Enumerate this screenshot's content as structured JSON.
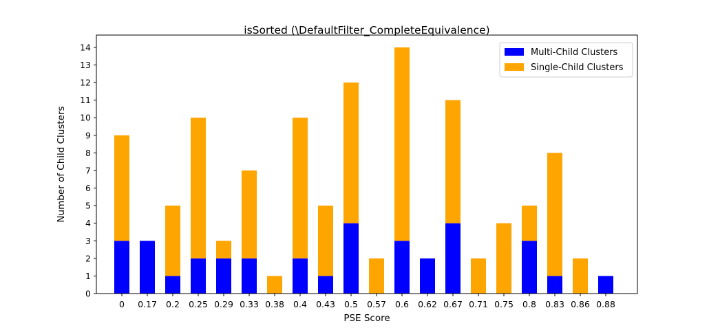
{
  "chart_data": {
    "type": "bar",
    "stacked": true,
    "title": "isSorted (\\DefaultFilter_CompleteEquivalence)",
    "xlabel": "PSE Score",
    "ylabel": "Number of Child Clusters",
    "ylim": [
      0,
      14.7
    ],
    "yticks": [
      "0",
      "1",
      "2",
      "3",
      "4",
      "5",
      "6",
      "7",
      "8",
      "9",
      "10",
      "11",
      "12",
      "13",
      "14"
    ],
    "categories": [
      "0",
      "0.17",
      "0.2",
      "0.25",
      "0.29",
      "0.33",
      "0.38",
      "0.4",
      "0.43",
      "0.5",
      "0.57",
      "0.6",
      "0.62",
      "0.67",
      "0.71",
      "0.75",
      "0.8",
      "0.83",
      "0.86",
      "0.88"
    ],
    "series": [
      {
        "name": "Multi-Child Clusters",
        "color": "#0000ff",
        "values": [
          3,
          3,
          1,
          2,
          2,
          2,
          0,
          2,
          1,
          4,
          0,
          3,
          2,
          4,
          0,
          0,
          3,
          1,
          0,
          1
        ]
      },
      {
        "name": "Single-Child Clusters",
        "color": "#ffa500",
        "values": [
          6,
          0,
          4,
          8,
          1,
          5,
          1,
          8,
          4,
          8,
          2,
          11,
          0,
          7,
          2,
          4,
          2,
          7,
          2,
          0
        ]
      }
    ],
    "legend_position": "top-right",
    "grid": false
  }
}
